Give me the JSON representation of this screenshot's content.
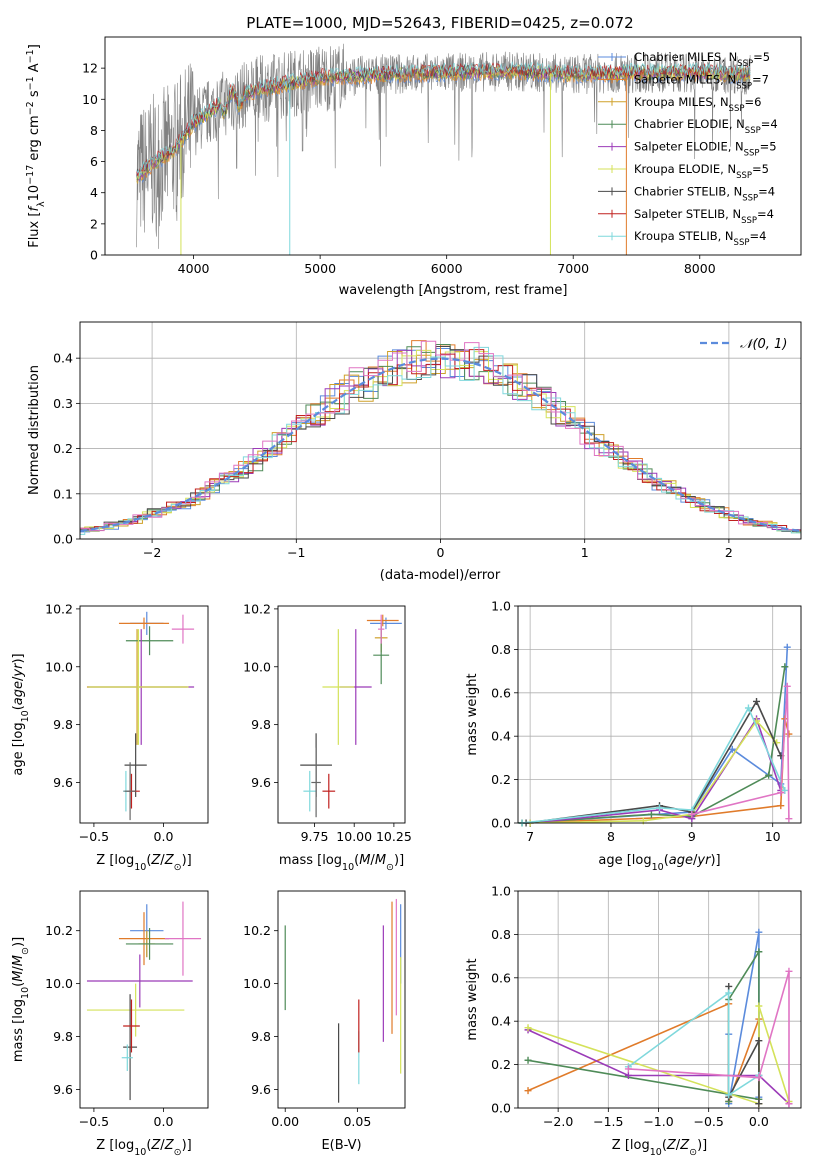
{
  "chart_data": [
    {
      "id": "spectrum",
      "type": "line",
      "title": "PLATE=1000, MJD=52643, FIBERID=0425, z=0.072",
      "xlabel": "wavelength [Angstrom, rest frame]",
      "ylabel": "Flux [fλ10⁻¹⁷ erg cm⁻² s⁻¹ A⁻¹]",
      "xlim": [
        3300,
        8800
      ],
      "ylim": [
        0,
        14
      ],
      "xticks": [
        4000,
        5000,
        6000,
        7000,
        8000
      ],
      "yticks": [
        0,
        2,
        4,
        6,
        8,
        10,
        12
      ],
      "grid": false,
      "legend_position": "upper-right",
      "series": [
        {
          "name": "Chabrier MILES, NSSP=5",
          "label_main": "Chabrier MILES, N",
          "label_sub": "SSP",
          "label_tail": "=5",
          "color": "#5b8bdc"
        },
        {
          "name": "Salpeter MILES, NSSP=7",
          "label_main": "Salpeter MILES, N",
          "label_sub": "SSP",
          "label_tail": "=7",
          "color": "#e07b2a"
        },
        {
          "name": "Kroupa MILES, NSSP=6",
          "label_main": "Kroupa MILES, N",
          "label_sub": "SSP",
          "label_tail": "=6",
          "color": "#cfa12a"
        },
        {
          "name": "Chabrier ELODIE, NSSP=4",
          "label_main": "Chabrier ELODIE, N",
          "label_sub": "SSP",
          "label_tail": "=4",
          "color": "#4f8b58"
        },
        {
          "name": "Salpeter ELODIE, NSSP=5",
          "label_main": "Salpeter ELODIE, N",
          "label_sub": "SSP",
          "label_tail": "=5",
          "color": "#9b3bb8"
        },
        {
          "name": "Kroupa ELODIE, NSSP=5",
          "label_main": "Kroupa ELODIE, N",
          "label_sub": "SSP",
          "label_tail": "=5",
          "color": "#d4e25a"
        },
        {
          "name": "Chabrier STELIB, NSSP=4",
          "label_main": "Chabrier STELIB, N",
          "label_sub": "SSP",
          "label_tail": "=4",
          "color": "#4a4a4a"
        },
        {
          "name": "Salpeter STELIB, NSSP=4",
          "label_main": "Salpeter STELIB, N",
          "label_sub": "SSP",
          "label_tail": "=4",
          "color": "#c0201e"
        },
        {
          "name": "Kroupa STELIB, NSSP=4",
          "label_main": "Kroupa STELIB, N",
          "label_sub": "SSP",
          "label_tail": "=4",
          "color": "#7fd8dc"
        }
      ],
      "observed_color": "#808080",
      "continuum": [
        {
          "x": 3550,
          "y": 5.0
        },
        {
          "x": 3700,
          "y": 6.0
        },
        {
          "x": 3850,
          "y": 6.8
        },
        {
          "x": 4000,
          "y": 8.5
        },
        {
          "x": 4200,
          "y": 9.6
        },
        {
          "x": 4500,
          "y": 10.6
        },
        {
          "x": 5000,
          "y": 11.4
        },
        {
          "x": 5500,
          "y": 11.6
        },
        {
          "x": 6000,
          "y": 11.7
        },
        {
          "x": 6500,
          "y": 11.8
        },
        {
          "x": 7000,
          "y": 11.6
        },
        {
          "x": 7500,
          "y": 11.7
        },
        {
          "x": 8000,
          "y": 11.7
        },
        {
          "x": 8400,
          "y": 11.6
        }
      ]
    },
    {
      "id": "residuals",
      "type": "step",
      "xlabel": "(data-model)/error",
      "ylabel": "Normed distribution",
      "xlim": [
        -2.5,
        2.5
      ],
      "ylim": [
        0,
        0.48
      ],
      "xticks": [
        -2,
        -1,
        0,
        1,
        2
      ],
      "xtick_labels": [
        "−2",
        "−1",
        "0",
        "1",
        "2"
      ],
      "yticks": [
        0.0,
        0.1,
        0.2,
        0.3,
        0.4
      ],
      "ytick_labels": [
        "0.0",
        "0.1",
        "0.2",
        "0.3",
        "0.4"
      ],
      "grid": true,
      "legend": "𝒩(0, 1)",
      "legend_position": "upper-right",
      "gaussian_color": "#5b8bdc",
      "bin_width": 0.1
    },
    {
      "id": "age_vs_Z",
      "type": "errorbar",
      "xlabel": "Z [log10(Z/Z⊙)]",
      "ylabel": "age  [log10(age/yr)]",
      "xlim": [
        -0.6,
        0.32
      ],
      "ylim": [
        9.46,
        10.21
      ],
      "xticks": [
        -0.5,
        0.0
      ],
      "xtick_labels": [
        "−0.5",
        "0.0"
      ],
      "yticks": [
        9.6,
        9.8,
        10.0,
        10.2
      ],
      "ytick_labels": [
        "9.6",
        "9.8",
        "10.0",
        "10.2"
      ],
      "grid": false,
      "points": [
        {
          "color": "#5b8bdc",
          "x": -0.12,
          "xerr": 0.12,
          "y": 10.15,
          "yerr": 0.04
        },
        {
          "color": "#e07b2a",
          "x": -0.14,
          "xerr": 0.18,
          "y": 10.15,
          "yerr": 0.02
        },
        {
          "color": "#cfa12a",
          "x": -0.19,
          "xerr": 0.36,
          "y": 9.93,
          "yerr": 0.2
        },
        {
          "color": "#4f8b58",
          "x": -0.1,
          "xerr": 0.17,
          "y": 10.09,
          "yerr": 0.05
        },
        {
          "color": "#9b3bb8",
          "x": -0.16,
          "xerr": 0.38,
          "y": 9.93,
          "yerr": 0.2
        },
        {
          "color": "#d4e25a",
          "x": -0.18,
          "xerr": 0.36,
          "y": 9.93,
          "yerr": 0.2
        },
        {
          "color": "#4a4a4a",
          "x": -0.2,
          "xerr": 0.08,
          "y": 9.66,
          "yerr": 0.11
        },
        {
          "color": "#c0201e",
          "x": -0.23,
          "xerr": 0.06,
          "y": 9.57,
          "yerr": 0.06
        },
        {
          "color": "#7fd8dc",
          "x": -0.27,
          "xerr": 0.02,
          "y": 9.57,
          "yerr": 0.07
        },
        {
          "color": "#e075c4",
          "x": 0.14,
          "xerr": 0.08,
          "y": 10.13,
          "yerr": 0.05
        },
        {
          "color": "#666666",
          "x": -0.24,
          "xerr": 0.04,
          "y": 9.57,
          "yerr": 0.1
        }
      ]
    },
    {
      "id": "age_vs_mass",
      "type": "errorbar",
      "xlabel": "mass [log10(M/M⊙)]",
      "xlim": [
        9.52,
        10.32
      ],
      "ylim": [
        9.46,
        10.21
      ],
      "xticks": [
        9.75,
        10.0,
        10.25
      ],
      "xtick_labels": [
        "9.75",
        "10.00",
        "10.25"
      ],
      "yticks": [
        9.6,
        9.8,
        10.0,
        10.2
      ],
      "ytick_labels": [
        "9.6",
        "9.8",
        "10.0",
        "10.2"
      ],
      "grid": false,
      "points": [
        {
          "color": "#5b8bdc",
          "x": 10.2,
          "xerr": 0.1,
          "y": 10.15,
          "yerr": 0.02
        },
        {
          "color": "#e07b2a",
          "x": 10.18,
          "xerr": 0.1,
          "y": 10.16,
          "yerr": 0.02
        },
        {
          "color": "#cfa12a",
          "x": 10.17,
          "xerr": 0.04,
          "y": 10.1,
          "yerr": 0.05
        },
        {
          "color": "#4f8b58",
          "x": 10.17,
          "xerr": 0.05,
          "y": 10.04,
          "yerr": 0.1
        },
        {
          "color": "#9b3bb8",
          "x": 10.01,
          "xerr": 0.1,
          "y": 9.93,
          "yerr": 0.2
        },
        {
          "color": "#d4e25a",
          "x": 9.9,
          "xerr": 0.1,
          "y": 9.93,
          "yerr": 0.2
        },
        {
          "color": "#4a4a4a",
          "x": 9.76,
          "xerr": 0.1,
          "y": 9.66,
          "yerr": 0.11
        },
        {
          "color": "#c0201e",
          "x": 9.84,
          "xerr": 0.04,
          "y": 9.57,
          "yerr": 0.06
        },
        {
          "color": "#7fd8dc",
          "x": 9.72,
          "xerr": 0.04,
          "y": 9.57,
          "yerr": 0.07
        },
        {
          "color": "#e075c4",
          "x": 10.17,
          "xerr": 0.02,
          "y": 10.13,
          "yerr": 0.05
        },
        {
          "color": "#666666",
          "x": 9.76,
          "xerr": 0.03,
          "y": 9.6,
          "yerr": 0.12
        }
      ]
    },
    {
      "id": "massweight_vs_age",
      "type": "line",
      "xlabel": "age  [log10(age/yr)]",
      "ylabel": "mass weight",
      "xlim": [
        6.85,
        10.35
      ],
      "ylim": [
        0.0,
        1.0
      ],
      "xticks": [
        7,
        8,
        9,
        10
      ],
      "xtick_labels": [
        "7",
        "8",
        "9",
        "10"
      ],
      "yticks": [
        0.0,
        0.2,
        0.4,
        0.6,
        0.8,
        1.0
      ],
      "ytick_labels": [
        "0.0",
        "0.2",
        "0.4",
        "0.6",
        "0.8",
        "1.0"
      ],
      "grid": true,
      "series": [
        {
          "color": "#5b8bdc",
          "x": [
            6.9,
            9.0,
            9.5,
            10.1,
            10.18
          ],
          "y": [
            0.0,
            0.05,
            0.34,
            0.18,
            0.81
          ]
        },
        {
          "color": "#e07b2a",
          "x": [
            6.9,
            9.0,
            10.1,
            10.15,
            10.2
          ],
          "y": [
            0.0,
            0.03,
            0.08,
            0.48,
            0.41
          ]
        },
        {
          "color": "#4f8b58",
          "x": [
            6.9,
            8.5,
            9.0,
            9.95,
            10.15
          ],
          "y": [
            0.0,
            0.04,
            0.03,
            0.22,
            0.72
          ]
        },
        {
          "color": "#9b3bb8",
          "x": [
            7.0,
            8.6,
            9.0,
            9.8,
            10.1
          ],
          "y": [
            0.0,
            0.06,
            0.02,
            0.48,
            0.15
          ]
        },
        {
          "color": "#d4e25a",
          "x": [
            7.0,
            8.4,
            9.0,
            9.8,
            10.05
          ],
          "y": [
            0.0,
            0.01,
            0.04,
            0.47,
            0.37
          ]
        },
        {
          "color": "#4a4a4a",
          "x": [
            6.95,
            8.6,
            9.0,
            9.8,
            10.1
          ],
          "y": [
            0.0,
            0.08,
            0.05,
            0.56,
            0.31
          ]
        },
        {
          "color": "#7fd8dc",
          "x": [
            6.9,
            8.6,
            9.0,
            9.7,
            10.15
          ],
          "y": [
            0.0,
            0.07,
            0.06,
            0.53,
            0.15
          ]
        },
        {
          "color": "#e075c4",
          "x": [
            9.0,
            10.1,
            10.18,
            10.2
          ],
          "y": [
            0.04,
            0.14,
            0.63,
            0.02
          ]
        }
      ]
    },
    {
      "id": "mass_vs_Z",
      "type": "errorbar",
      "xlabel": "Z [log10(Z/Z⊙)]",
      "ylabel": "mass [log10(M/M⊙)]",
      "xlim": [
        -0.6,
        0.32
      ],
      "ylim": [
        9.53,
        10.35
      ],
      "xticks": [
        -0.5,
        0.0
      ],
      "xtick_labels": [
        "−0.5",
        "0.0"
      ],
      "yticks": [
        9.6,
        9.8,
        10.0,
        10.2
      ],
      "ytick_labels": [
        "9.6",
        "9.8",
        "10.0",
        "10.2"
      ],
      "grid": false,
      "points": [
        {
          "color": "#5b8bdc",
          "x": -0.12,
          "xerr": 0.12,
          "y": 10.2,
          "yerr": 0.1
        },
        {
          "color": "#e07b2a",
          "x": -0.14,
          "xerr": 0.18,
          "y": 10.17,
          "yerr": 0.1
        },
        {
          "color": "#cfa12a",
          "x": -0.12,
          "xerr": 0.06,
          "y": 10.15,
          "yerr": 0.05
        },
        {
          "color": "#4f8b58",
          "x": -0.1,
          "xerr": 0.17,
          "y": 10.15,
          "yerr": 0.06
        },
        {
          "color": "#9b3bb8",
          "x": -0.17,
          "xerr": 0.38,
          "y": 10.01,
          "yerr": 0.1
        },
        {
          "color": "#d4e25a",
          "x": -0.2,
          "xerr": 0.35,
          "y": 9.9,
          "yerr": 0.1
        },
        {
          "color": "#4a4a4a",
          "x": -0.24,
          "xerr": 0.05,
          "y": 9.76,
          "yerr": 0.2
        },
        {
          "color": "#c0201e",
          "x": -0.23,
          "xerr": 0.06,
          "y": 9.84,
          "yerr": 0.1
        },
        {
          "color": "#7fd8dc",
          "x": -0.26,
          "xerr": 0.04,
          "y": 9.72,
          "yerr": 0.05
        },
        {
          "color": "#e075c4",
          "x": 0.14,
          "xerr": 0.13,
          "y": 10.17,
          "yerr": 0.14
        }
      ]
    },
    {
      "id": "mass_vs_EBV",
      "type": "errorbar",
      "xlabel": "E(B-V)",
      "xlim": [
        -0.005,
        0.083
      ],
      "ylim": [
        9.53,
        10.35
      ],
      "xticks": [
        0.0,
        0.05
      ],
      "xtick_labels": [
        "0.00",
        "0.05"
      ],
      "yticks": [
        9.6,
        9.8,
        10.0,
        10.2
      ],
      "ytick_labels": [
        "9.6",
        "9.8",
        "10.0",
        "10.2"
      ],
      "grid": false,
      "points": [
        {
          "color": "#4f8b58",
          "x": 0.0,
          "xerr": 0.0,
          "y": 10.06,
          "yerr": 0.16
        },
        {
          "color": "#4a4a4a",
          "x": 0.037,
          "xerr": 0.0,
          "y": 9.7,
          "yerr": 0.15
        },
        {
          "color": "#7fd8dc",
          "x": 0.051,
          "xerr": 0.0,
          "y": 9.72,
          "yerr": 0.1
        },
        {
          "color": "#c0201e",
          "x": 0.051,
          "xerr": 0.0,
          "y": 9.84,
          "yerr": 0.1
        },
        {
          "color": "#9b3bb8",
          "x": 0.068,
          "xerr": 0.0,
          "y": 10.0,
          "yerr": 0.22
        },
        {
          "color": "#e07b2a",
          "x": 0.074,
          "xerr": 0.0,
          "y": 10.06,
          "yerr": 0.25
        },
        {
          "color": "#e075c4",
          "x": 0.077,
          "xerr": 0.0,
          "y": 10.1,
          "yerr": 0.22
        },
        {
          "color": "#5b8bdc",
          "x": 0.08,
          "xerr": 0.0,
          "y": 10.15,
          "yerr": 0.15
        },
        {
          "color": "#d4e25a",
          "x": 0.08,
          "xerr": 0.0,
          "y": 9.88,
          "yerr": 0.22
        }
      ]
    },
    {
      "id": "massweight_vs_Z",
      "type": "line",
      "xlabel": "Z [log10(Z/Z⊙)]",
      "ylabel": "mass weight",
      "xlim": [
        -2.4,
        0.42
      ],
      "ylim": [
        0.0,
        1.0
      ],
      "xticks": [
        -2.0,
        -1.5,
        -1.0,
        -0.5,
        0.0
      ],
      "xtick_labels": [
        "−2.0",
        "−1.5",
        "−1.0",
        "−0.5",
        "0.0"
      ],
      "yticks": [
        0.0,
        0.2,
        0.4,
        0.6,
        0.8,
        1.0
      ],
      "ytick_labels": [
        "0.0",
        "0.2",
        "0.4",
        "0.6",
        "0.8",
        "1.0"
      ],
      "grid": true,
      "series": [
        {
          "color": "#5b8bdc",
          "x": [
            -0.3,
            -0.3,
            0.0,
            0.0
          ],
          "y": [
            0.34,
            0.02,
            0.81,
            0.05
          ]
        },
        {
          "color": "#e07b2a",
          "x": [
            -2.3,
            -0.3,
            -0.3,
            0.0,
            0.0
          ],
          "y": [
            0.08,
            0.48,
            0.03,
            0.41,
            0.02
          ]
        },
        {
          "color": "#4f8b58",
          "x": [
            -2.3,
            0.0,
            0.0,
            -0.3,
            -0.3
          ],
          "y": [
            0.22,
            0.04,
            0.72,
            0.5,
            0.03
          ]
        },
        {
          "color": "#9b3bb8",
          "x": [
            -2.3,
            -1.3,
            0.0,
            0.3
          ],
          "y": [
            0.36,
            0.15,
            0.15,
            0.02
          ]
        },
        {
          "color": "#d4e25a",
          "x": [
            -2.3,
            0.0,
            0.0,
            0.3
          ],
          "y": [
            0.37,
            0.02,
            0.47,
            0.03
          ]
        },
        {
          "color": "#4a4a4a",
          "x": [
            -0.3,
            -0.3,
            0.0,
            0.0
          ],
          "y": [
            0.56,
            0.05,
            0.31,
            0.02
          ]
        },
        {
          "color": "#7fd8dc",
          "x": [
            -1.3,
            -0.3,
            -0.3,
            0.0
          ],
          "y": [
            0.19,
            0.53,
            0.06,
            0.15
          ]
        },
        {
          "color": "#e075c4",
          "x": [
            -1.3,
            0.0,
            0.3,
            0.3
          ],
          "y": [
            0.18,
            0.14,
            0.63,
            0.02
          ]
        }
      ]
    }
  ]
}
